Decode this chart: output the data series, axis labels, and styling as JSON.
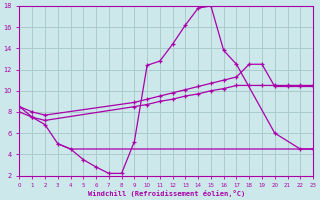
{
  "bg_color": "#cce8ea",
  "grid_color": "#aacccc",
  "line_color": "#aa00aa",
  "xlabel": "Windchill (Refroidissement éolien,°C)",
  "xlim": [
    0,
    23
  ],
  "ylim": [
    2,
    18
  ],
  "yticks": [
    2,
    4,
    6,
    8,
    10,
    12,
    14,
    16,
    18
  ],
  "xticks": [
    0,
    1,
    2,
    3,
    4,
    5,
    6,
    7,
    8,
    9,
    10,
    11,
    12,
    13,
    14,
    15,
    16,
    17,
    18,
    19,
    20,
    21,
    22,
    23
  ],
  "curve1_x": [
    0,
    1,
    2,
    3,
    4,
    5,
    6,
    7,
    8,
    9,
    10,
    11,
    12,
    13,
    14,
    15,
    16,
    17,
    20,
    22,
    23
  ],
  "curve1_y": [
    8.5,
    7.5,
    6.8,
    5.0,
    4.5,
    3.5,
    2.8,
    2.2,
    2.2,
    5.2,
    12.4,
    12.8,
    14.4,
    16.2,
    17.8,
    18.0,
    13.8,
    12.5,
    6.0,
    4.5,
    4.5
  ],
  "curve2_x": [
    0,
    1,
    2,
    9,
    10,
    11,
    12,
    13,
    14,
    15,
    16,
    17,
    18,
    19,
    20,
    21,
    22,
    23
  ],
  "curve2_y": [
    8.5,
    8.0,
    7.7,
    8.9,
    9.2,
    9.5,
    9.8,
    10.1,
    10.4,
    10.7,
    11.0,
    11.3,
    12.5,
    12.5,
    10.4,
    10.4,
    10.4,
    10.4
  ],
  "curve3_x": [
    0,
    1,
    2,
    9,
    10,
    11,
    12,
    13,
    14,
    15,
    16,
    17,
    18,
    19,
    20,
    21,
    22,
    23
  ],
  "curve3_y": [
    8.0,
    7.5,
    7.2,
    8.5,
    8.7,
    9.0,
    9.2,
    9.5,
    9.7,
    10.0,
    10.2,
    10.5,
    10.5,
    10.5,
    10.5,
    10.5,
    10.5,
    10.5
  ],
  "curve4_x": [
    3,
    4,
    5,
    6,
    7,
    8,
    9,
    10,
    11,
    12,
    13,
    14,
    15,
    16,
    17,
    18,
    19,
    20,
    21,
    22,
    23
  ],
  "curve4_y": [
    5.0,
    4.5,
    4.5,
    4.5,
    4.5,
    4.5,
    4.5,
    4.5,
    4.5,
    4.5,
    4.5,
    4.5,
    4.5,
    4.5,
    4.5,
    4.5,
    4.5,
    4.5,
    4.5,
    4.5,
    4.5
  ]
}
